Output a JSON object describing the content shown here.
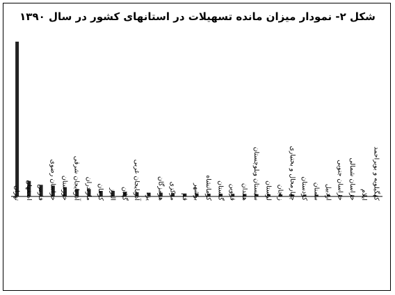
{
  "chart_data": {
    "type": "bar",
    "title": "شکل ۲- نمودار میزان مانده تسهیلات  در استانهای کشور در سال ۱۳۹۰",
    "xlabel": "",
    "ylabel": "",
    "legend": "none",
    "grid": false,
    "bar_color": "#222222",
    "categories": [
      "تهران",
      "اصفهان",
      "فارس",
      "خراسان رضوی",
      "خوزستان",
      "آذربایجان شرقی",
      "مازندران",
      "کرمان",
      "البرز",
      "گیلان",
      "آذربایجان غربی",
      "یزد",
      "هرمزگان",
      "مرکزی",
      "قم",
      "بوشهر",
      "کرمانشاه",
      "گلستان",
      "قزوین",
      "همدان",
      "سیستان وبلوچستان",
      "لرستان",
      "زنجان",
      "چهارمحال و بختیاری",
      "کردستان",
      "سمنان",
      "اردبیل",
      "خراسان جنوبی",
      "خراسان شمالی",
      "ایلام",
      "کهگیلویه و بویراحمد"
    ],
    "values": [
      100,
      10,
      7.5,
      7,
      6,
      4.8,
      4.8,
      3.6,
      3.6,
      3,
      2.7,
      2.4,
      2.4,
      2.2,
      1.9,
      1.9,
      1.8,
      1.7,
      1.7,
      1.6,
      1.5,
      1.4,
      1.3,
      1.2,
      1.2,
      1.1,
      1.0,
      0.8,
      0.7,
      0.6,
      0.5
    ],
    "ylim": [
      0,
      100
    ]
  }
}
